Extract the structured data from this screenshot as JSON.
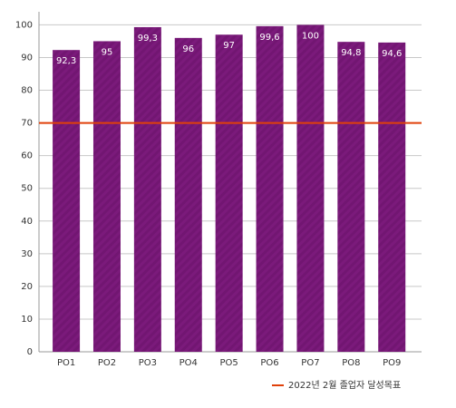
{
  "chart_data": {
    "type": "bar",
    "categories": [
      "PO1",
      "PO2",
      "PO3",
      "PO4",
      "PO5",
      "PO6",
      "PO7",
      "PO8",
      "PO9"
    ],
    "values": [
      92.3,
      95,
      99.3,
      96,
      97,
      99.6,
      100,
      94.8,
      94.6
    ],
    "value_labels": [
      "92,3",
      "95",
      "99,3",
      "96",
      "97",
      "99,6",
      "100",
      "94,8",
      "94,6"
    ],
    "color": "#7b1a7b",
    "target": {
      "name": "2022년 2월 졸업자 달성목표",
      "value": 70,
      "color": "#e0400a"
    },
    "ylim": [
      0,
      104
    ],
    "yticks": [
      0,
      10,
      20,
      30,
      40,
      50,
      60,
      70,
      80,
      90,
      100
    ],
    "grid": true
  }
}
